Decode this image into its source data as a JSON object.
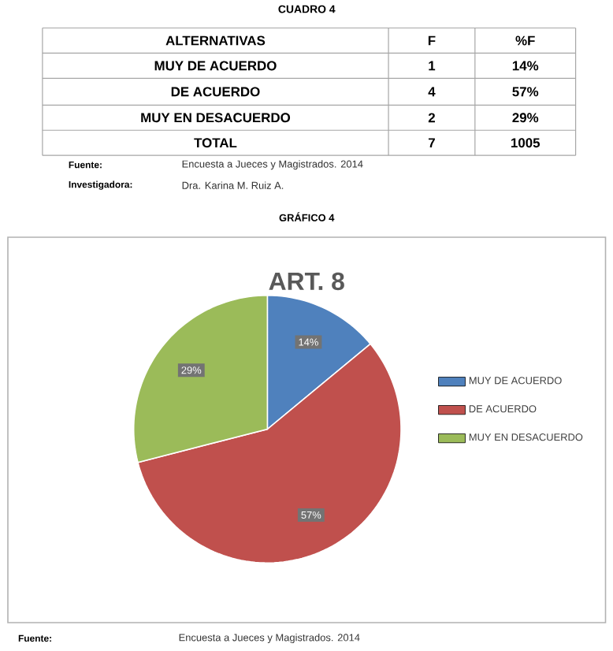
{
  "chart_data": [
    {
      "type": "other",
      "title": "CUADRO 4",
      "annotations": [
        "ALTERNATIVAS",
        "F",
        "%F",
        "MUY DE ACUERDO",
        "1",
        "14%",
        "DE ACUERDO",
        "4",
        "57%",
        "MUY EN DESACUERDO",
        "2",
        "29%",
        "TOTAL",
        "7",
        "1005",
        "Fuente:",
        "Encuesta a Jueces y Magistrados. 2014",
        "Investigadora:",
        "Dra. Karina M. Ruiz A.",
        "GRÁFICO 4"
      ]
    },
    {
      "type": "pie",
      "title": "ART. 8",
      "categories": [
        "MUY DE ACUERDO",
        "DE ACUERDO",
        "MUY EN DESACUERDO"
      ],
      "values": [
        14,
        57,
        29
      ],
      "value_labels": [
        "14%",
        "57%",
        "29%"
      ],
      "colors": [
        "#4f81bd",
        "#c0504d",
        "#9bbb59"
      ],
      "legend": "right",
      "annotations": [
        "Fuente:",
        "Encuesta a Jueces y Magistrados. 2014"
      ]
    }
  ]
}
